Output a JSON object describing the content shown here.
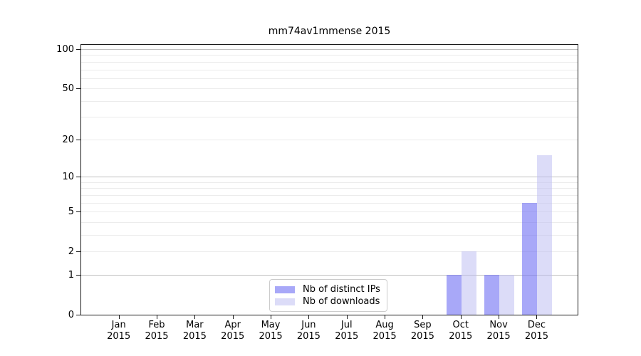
{
  "chart_data": {
    "type": "bar",
    "title": "mm74av1mmense 2015",
    "categories": [
      "Jan 2015",
      "Feb 2015",
      "Mar 2015",
      "Apr 2015",
      "May 2015",
      "Jun 2015",
      "Jul 2015",
      "Aug 2015",
      "Sep 2015",
      "Oct 2015",
      "Nov 2015",
      "Dec 2015"
    ],
    "series": [
      {
        "name": "Nb of distinct IPs",
        "color_hex": "#a8a8f0",
        "fill": "rgba(110,110,243,0.6)",
        "values": [
          0,
          0,
          0,
          0,
          0,
          0,
          0,
          0,
          0,
          1,
          1,
          6
        ]
      },
      {
        "name": "Nb of downloads",
        "color_hex": "#dcdcf8",
        "fill": "rgba(185,185,241,0.5)",
        "values": [
          0,
          0,
          0,
          0,
          0,
          0,
          0,
          0,
          0,
          2,
          1,
          15
        ]
      }
    ],
    "xlabel": "",
    "ylabel": "",
    "y_axis": {
      "scale": "log10(value+1)",
      "tick_labels": [
        "0",
        "1",
        "2",
        "5",
        "10",
        "20",
        "50",
        "100"
      ],
      "tick_values": [
        0,
        1,
        2,
        5,
        10,
        20,
        50,
        100
      ],
      "major_gridlines": [
        1,
        10,
        100
      ],
      "minor_gridlines": [
        2,
        3,
        4,
        5,
        6,
        7,
        8,
        9,
        20,
        30,
        40,
        50,
        60,
        70,
        80,
        90
      ],
      "ylim": [
        0,
        110
      ]
    },
    "grid": "on",
    "legend_position": "lower center"
  },
  "colors": {
    "major_grid": "#c0c0c0",
    "minor_grid": "#ececec",
    "axis": "#1a1a1a",
    "legend_border": "#cccccc",
    "background": "#ffffff"
  }
}
